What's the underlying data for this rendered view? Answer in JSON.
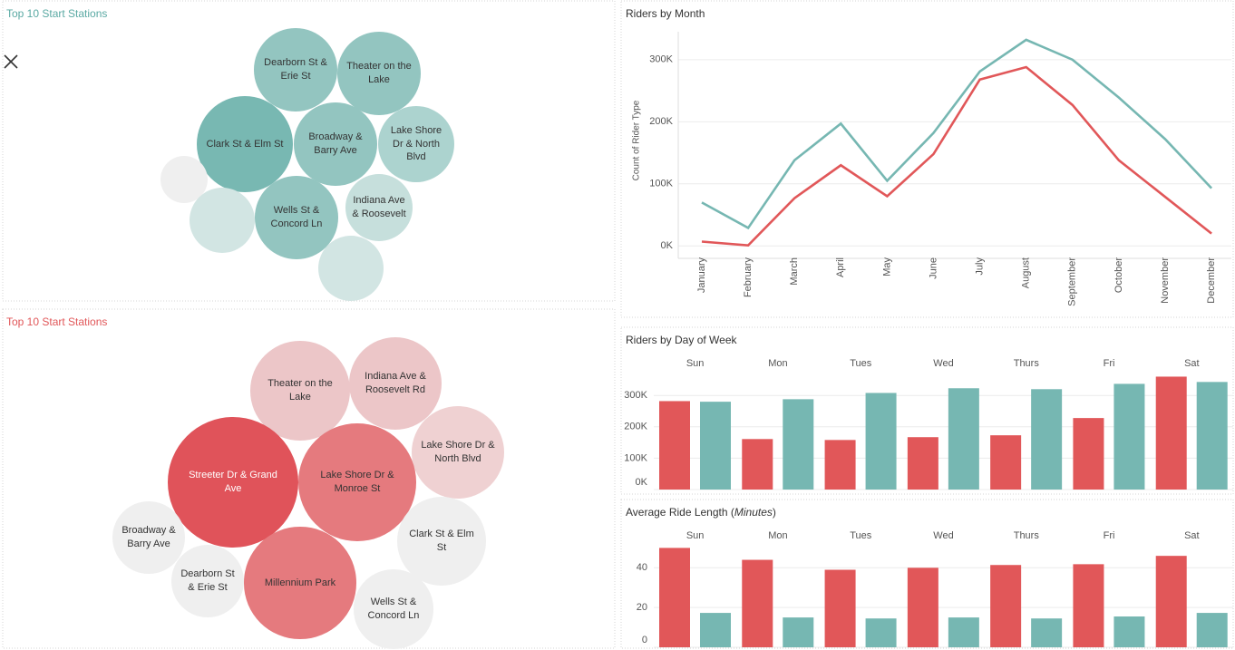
{
  "chart_data": [
    {
      "type": "bubble",
      "title": "Top 10 Start Stations",
      "title_color": "#5aa9a3",
      "categories": [
        "Dearborn St & Erie St",
        "Theater on the Lake",
        "Clark St & Elm St",
        "Broadway & Barry Ave",
        "Lake Shore Dr & North Blvd",
        null,
        null,
        "Wells St & Concord Ln",
        "Indiana Ave & Roosevelt",
        null
      ],
      "values": [
        21,
        21,
        28,
        21,
        18,
        7,
        13,
        21,
        14,
        13
      ],
      "colors": [
        "#93c5c0",
        "#93c5c0",
        "#78b8b2",
        "#93c5c0",
        "#acd3cf",
        "#efefef",
        "#d2e5e3",
        "#93c5c0",
        "#c6dfdc",
        "#d2e5e3"
      ]
    },
    {
      "type": "bubble",
      "title": "Top 10 Start Stations",
      "title_color": "#e15759",
      "categories": [
        "Theater on the Lake",
        "Indiana Ave & Roosevelt Rd",
        "Lake Shore Dr & North Blvd",
        "Streeter Dr & Grand Ave",
        "Lake Shore Dr & Monroe St",
        "Broadway & Barry Ave",
        "Clark St & Elm St",
        "Dearborn St & Erie St",
        "Millennium Park",
        "Wells St & Concord Ln"
      ],
      "values": [
        30,
        26,
        26,
        52,
        42,
        16,
        24,
        16,
        38,
        19
      ],
      "colors": [
        "#ecc6c8",
        "#ecc6c8",
        "#efd1d2",
        "#e0535a",
        "#e57a7e",
        "#efefef",
        "#efefef",
        "#efefef",
        "#e57a7e",
        "#efefef"
      ]
    },
    {
      "type": "line",
      "title": "Riders by Month",
      "y_label": "Count of Rider Type",
      "categories": [
        "January",
        "February",
        "March",
        "April",
        "May",
        "June",
        "July",
        "August",
        "September",
        "October",
        "November",
        "December"
      ],
      "series": [
        {
          "color": "#76b7b2",
          "values": [
            70000,
            29000,
            138000,
            197000,
            105000,
            182000,
            281000,
            332000,
            300000,
            239000,
            172000,
            93000
          ]
        },
        {
          "color": "#e15759",
          "values": [
            7000,
            1000,
            77000,
            130000,
            80000,
            148000,
            268000,
            288000,
            227000,
            138000,
            79000,
            20000
          ]
        }
      ],
      "ylim": [
        -20000,
        345000
      ],
      "yticks": [
        {
          "value": 0,
          "label": "0K"
        },
        {
          "value": 100000,
          "label": "100K"
        },
        {
          "value": 200000,
          "label": "200K"
        },
        {
          "value": 300000,
          "label": "300K"
        }
      ],
      "grid": true
    },
    {
      "type": "bar",
      "title": "Riders by Day of Week",
      "categories": [
        "Sun",
        "Mon",
        "Tues",
        "Wed",
        "Thurs",
        "Fri",
        "Sat"
      ],
      "series": [
        {
          "color": "#e15759",
          "values": [
            282000,
            161000,
            158000,
            167000,
            173000,
            228000,
            360000
          ]
        },
        {
          "color": "#76b7b2",
          "values": [
            280000,
            288000,
            308000,
            323000,
            320000,
            337000,
            343000
          ]
        }
      ],
      "ylim": [
        0,
        370000
      ],
      "yticks": [
        {
          "value": 0,
          "label": "0K"
        },
        {
          "value": 100000,
          "label": "100K"
        },
        {
          "value": 200000,
          "label": "200K"
        },
        {
          "value": 300000,
          "label": "300K"
        }
      ],
      "grid": true
    },
    {
      "type": "bar",
      "title_parts": [
        "Average Ride Length (",
        "Minutes",
        ")"
      ],
      "categories": [
        "Sun",
        "Mon",
        "Tues",
        "Wed",
        "Thurs",
        "Fri",
        "Sat"
      ],
      "series": [
        {
          "color": "#e15759",
          "values": [
            50,
            44,
            39,
            40,
            41.4,
            41.8,
            46
          ]
        },
        {
          "color": "#76b7b2",
          "values": [
            17.3,
            15,
            14.5,
            15,
            14.5,
            15.5,
            17.3
          ]
        }
      ],
      "ylim": [
        0,
        52
      ],
      "yticks": [
        0,
        20,
        40
      ],
      "grid": true
    }
  ]
}
